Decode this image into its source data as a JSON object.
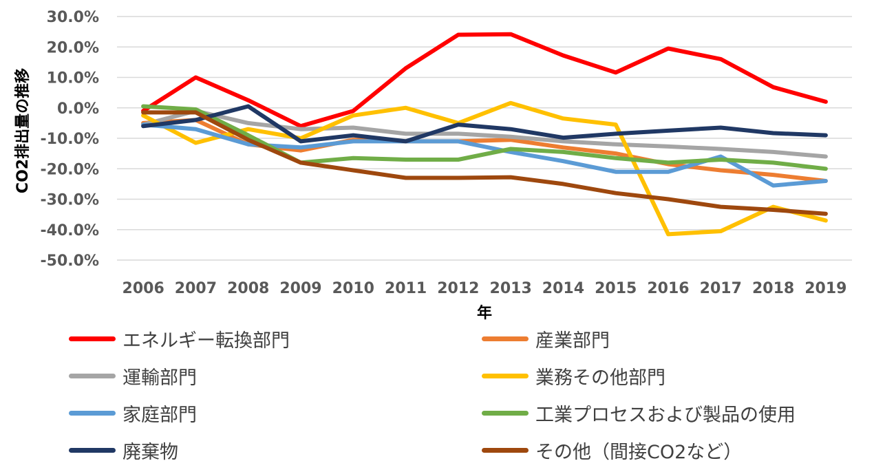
{
  "chart_data": {
    "type": "line",
    "title": "",
    "xlabel": "年",
    "ylabel": "CO2排出量の推移",
    "ylim": [
      -0.5,
      0.3
    ],
    "yticks": [
      0.3,
      0.2,
      0.1,
      0.0,
      -0.1,
      -0.2,
      -0.3,
      -0.4,
      -0.5
    ],
    "ytick_labels": [
      "30.0%",
      "20.0%",
      "10.0%",
      "0.0%",
      "-10.0%",
      "-20.0%",
      "-30.0%",
      "-40.0%",
      "-50.0%"
    ],
    "grid": true,
    "legend_position": "bottom",
    "x": [
      "2006",
      "2007",
      "2008",
      "2009",
      "2010",
      "2011",
      "2012",
      "2013",
      "2014",
      "2015",
      "2016",
      "2017",
      "2018",
      "2019"
    ],
    "series": [
      {
        "name": "エネルギー転換部門",
        "color": "#ff0000",
        "values": [
          -0.01,
          0.1,
          0.025,
          -0.06,
          -0.01,
          0.13,
          0.24,
          0.242,
          0.172,
          0.116,
          0.195,
          0.16,
          0.068,
          0.02
        ]
      },
      {
        "name": "産業部門",
        "color": "#ed7d31",
        "values": [
          -0.05,
          -0.04,
          -0.12,
          -0.14,
          -0.105,
          -0.11,
          -0.11,
          -0.105,
          -0.13,
          -0.15,
          -0.185,
          -0.205,
          -0.22,
          -0.24
        ]
      },
      {
        "name": "運輸部門",
        "color": "#a5a5a5",
        "values": [
          -0.055,
          -0.01,
          -0.05,
          -0.07,
          -0.065,
          -0.085,
          -0.085,
          -0.095,
          -0.11,
          -0.12,
          -0.127,
          -0.135,
          -0.145,
          -0.16
        ]
      },
      {
        "name": "業務その他部門",
        "color": "#ffc000",
        "values": [
          -0.025,
          -0.115,
          -0.07,
          -0.1,
          -0.025,
          0.0,
          -0.05,
          0.016,
          -0.035,
          -0.055,
          -0.415,
          -0.405,
          -0.325,
          -0.37
        ]
      },
      {
        "name": "家庭部門",
        "color": "#5b9bd5",
        "values": [
          -0.055,
          -0.07,
          -0.12,
          -0.13,
          -0.11,
          -0.11,
          -0.11,
          -0.145,
          -0.175,
          -0.21,
          -0.21,
          -0.16,
          -0.255,
          -0.24
        ]
      },
      {
        "name": "工業プロセスおよび製品の使用",
        "color": "#70ad47",
        "values": [
          0.005,
          -0.005,
          -0.09,
          -0.18,
          -0.165,
          -0.17,
          -0.17,
          -0.135,
          -0.145,
          -0.165,
          -0.18,
          -0.17,
          -0.18,
          -0.2
        ]
      },
      {
        "name": "廃棄物",
        "color": "#203864",
        "values": [
          -0.06,
          -0.04,
          0.005,
          -0.11,
          -0.09,
          -0.11,
          -0.055,
          -0.07,
          -0.098,
          -0.085,
          -0.075,
          -0.065,
          -0.083,
          -0.09
        ]
      },
      {
        "name": "その他（間接CO2など）",
        "color": "#9e480e",
        "values": [
          -0.015,
          -0.015,
          -0.105,
          -0.18,
          -0.205,
          -0.23,
          -0.23,
          -0.228,
          -0.25,
          -0.28,
          -0.3,
          -0.325,
          -0.335,
          -0.348
        ]
      }
    ]
  }
}
